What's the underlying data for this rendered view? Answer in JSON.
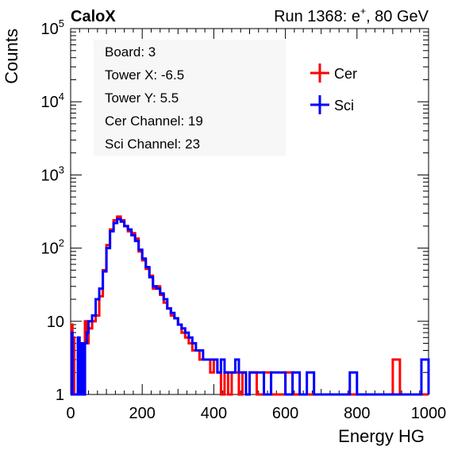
{
  "header": {
    "experiment": "CaloX",
    "run_label": "Run 1368: e",
    "run_sup": "+",
    "run_suffix": ", 80 GeV"
  },
  "info_box": {
    "lines": [
      "Board: 3",
      "Tower X: -6.5",
      "Tower Y: 5.5",
      "Cer Channel: 19",
      "Sci Channel: 23"
    ]
  },
  "chart_data": {
    "type": "line",
    "xlabel": "Energy HG",
    "ylabel": "Counts",
    "xlim": [
      0,
      1000
    ],
    "ylim": [
      1,
      100000
    ],
    "yscale": "log",
    "x_ticks": [
      0,
      200,
      400,
      600,
      800,
      1000
    ],
    "x_tick_labels": [
      "0",
      "200",
      "400",
      "600",
      "800",
      "1000"
    ],
    "y_ticks": [
      1,
      10,
      100,
      1000,
      10000,
      100000
    ],
    "y_tick_labels": [
      {
        "base": "1",
        "exp": ""
      },
      {
        "base": "10",
        "exp": ""
      },
      {
        "base": "10",
        "exp": "2"
      },
      {
        "base": "10",
        "exp": "3"
      },
      {
        "base": "10",
        "exp": "4"
      },
      {
        "base": "10",
        "exp": "5"
      }
    ],
    "legend_position": "top-right",
    "series": [
      {
        "name": "Cer",
        "color": "#ff0000",
        "x": [
          0,
          3,
          5,
          10,
          15,
          20,
          25,
          30,
          35,
          40,
          45,
          50,
          60,
          70,
          80,
          90,
          100,
          110,
          120,
          130,
          140,
          150,
          160,
          170,
          180,
          190,
          200,
          210,
          220,
          230,
          240,
          250,
          260,
          270,
          280,
          290,
          300,
          310,
          320,
          330,
          340,
          350,
          360,
          370,
          380,
          390,
          400,
          410,
          420,
          430,
          440,
          450,
          460,
          470,
          480,
          490,
          500,
          520,
          540,
          560,
          580,
          600,
          620,
          640,
          660,
          680,
          700,
          720,
          740,
          760,
          780,
          800,
          820,
          840,
          860,
          880,
          900,
          920,
          940,
          960,
          980,
          1000
        ],
        "y": [
          1,
          9,
          6,
          1,
          1,
          1,
          1,
          1,
          1,
          10,
          5,
          8,
          10,
          12,
          22,
          50,
          110,
          180,
          240,
          270,
          240,
          200,
          170,
          160,
          135,
          90,
          68,
          52,
          42,
          28,
          30,
          23,
          18,
          15,
          12,
          11,
          9,
          7,
          6,
          5,
          4,
          4,
          3,
          3,
          3,
          2,
          3,
          2,
          1,
          2,
          1,
          2,
          2,
          1,
          2,
          1,
          2,
          1,
          2,
          1,
          1,
          2,
          1,
          1,
          1,
          1,
          1,
          1,
          1,
          1,
          1,
          1,
          1,
          1,
          1,
          1,
          3,
          1,
          1,
          1,
          1,
          1
        ]
      },
      {
        "name": "Sci",
        "color": "#0000ff",
        "x": [
          0,
          3,
          5,
          10,
          15,
          20,
          25,
          30,
          35,
          40,
          45,
          50,
          60,
          70,
          80,
          90,
          100,
          110,
          120,
          130,
          140,
          150,
          160,
          170,
          180,
          190,
          200,
          210,
          220,
          230,
          240,
          250,
          260,
          270,
          280,
          290,
          300,
          310,
          320,
          330,
          340,
          350,
          360,
          370,
          380,
          390,
          400,
          410,
          420,
          430,
          440,
          450,
          460,
          470,
          480,
          490,
          500,
          520,
          540,
          560,
          580,
          600,
          620,
          640,
          660,
          680,
          700,
          720,
          740,
          760,
          780,
          800,
          820,
          840,
          860,
          880,
          900,
          920,
          940,
          960,
          980,
          1000
        ],
        "y": [
          1,
          7,
          1,
          1,
          1,
          6,
          1,
          5,
          1,
          5,
          7,
          10,
          12,
          20,
          28,
          48,
          100,
          170,
          220,
          250,
          230,
          200,
          180,
          150,
          125,
          95,
          72,
          55,
          40,
          30,
          28,
          24,
          20,
          15,
          13,
          11,
          9,
          8,
          7,
          6,
          5,
          4,
          4,
          3,
          3,
          3,
          3,
          2,
          3,
          2,
          2,
          2,
          3,
          2,
          2,
          1,
          2,
          2,
          1,
          2,
          2,
          1,
          2,
          1,
          2,
          1,
          1,
          1,
          1,
          1,
          2,
          1,
          1,
          1,
          1,
          1,
          1,
          1,
          1,
          1,
          3,
          1
        ]
      }
    ]
  }
}
